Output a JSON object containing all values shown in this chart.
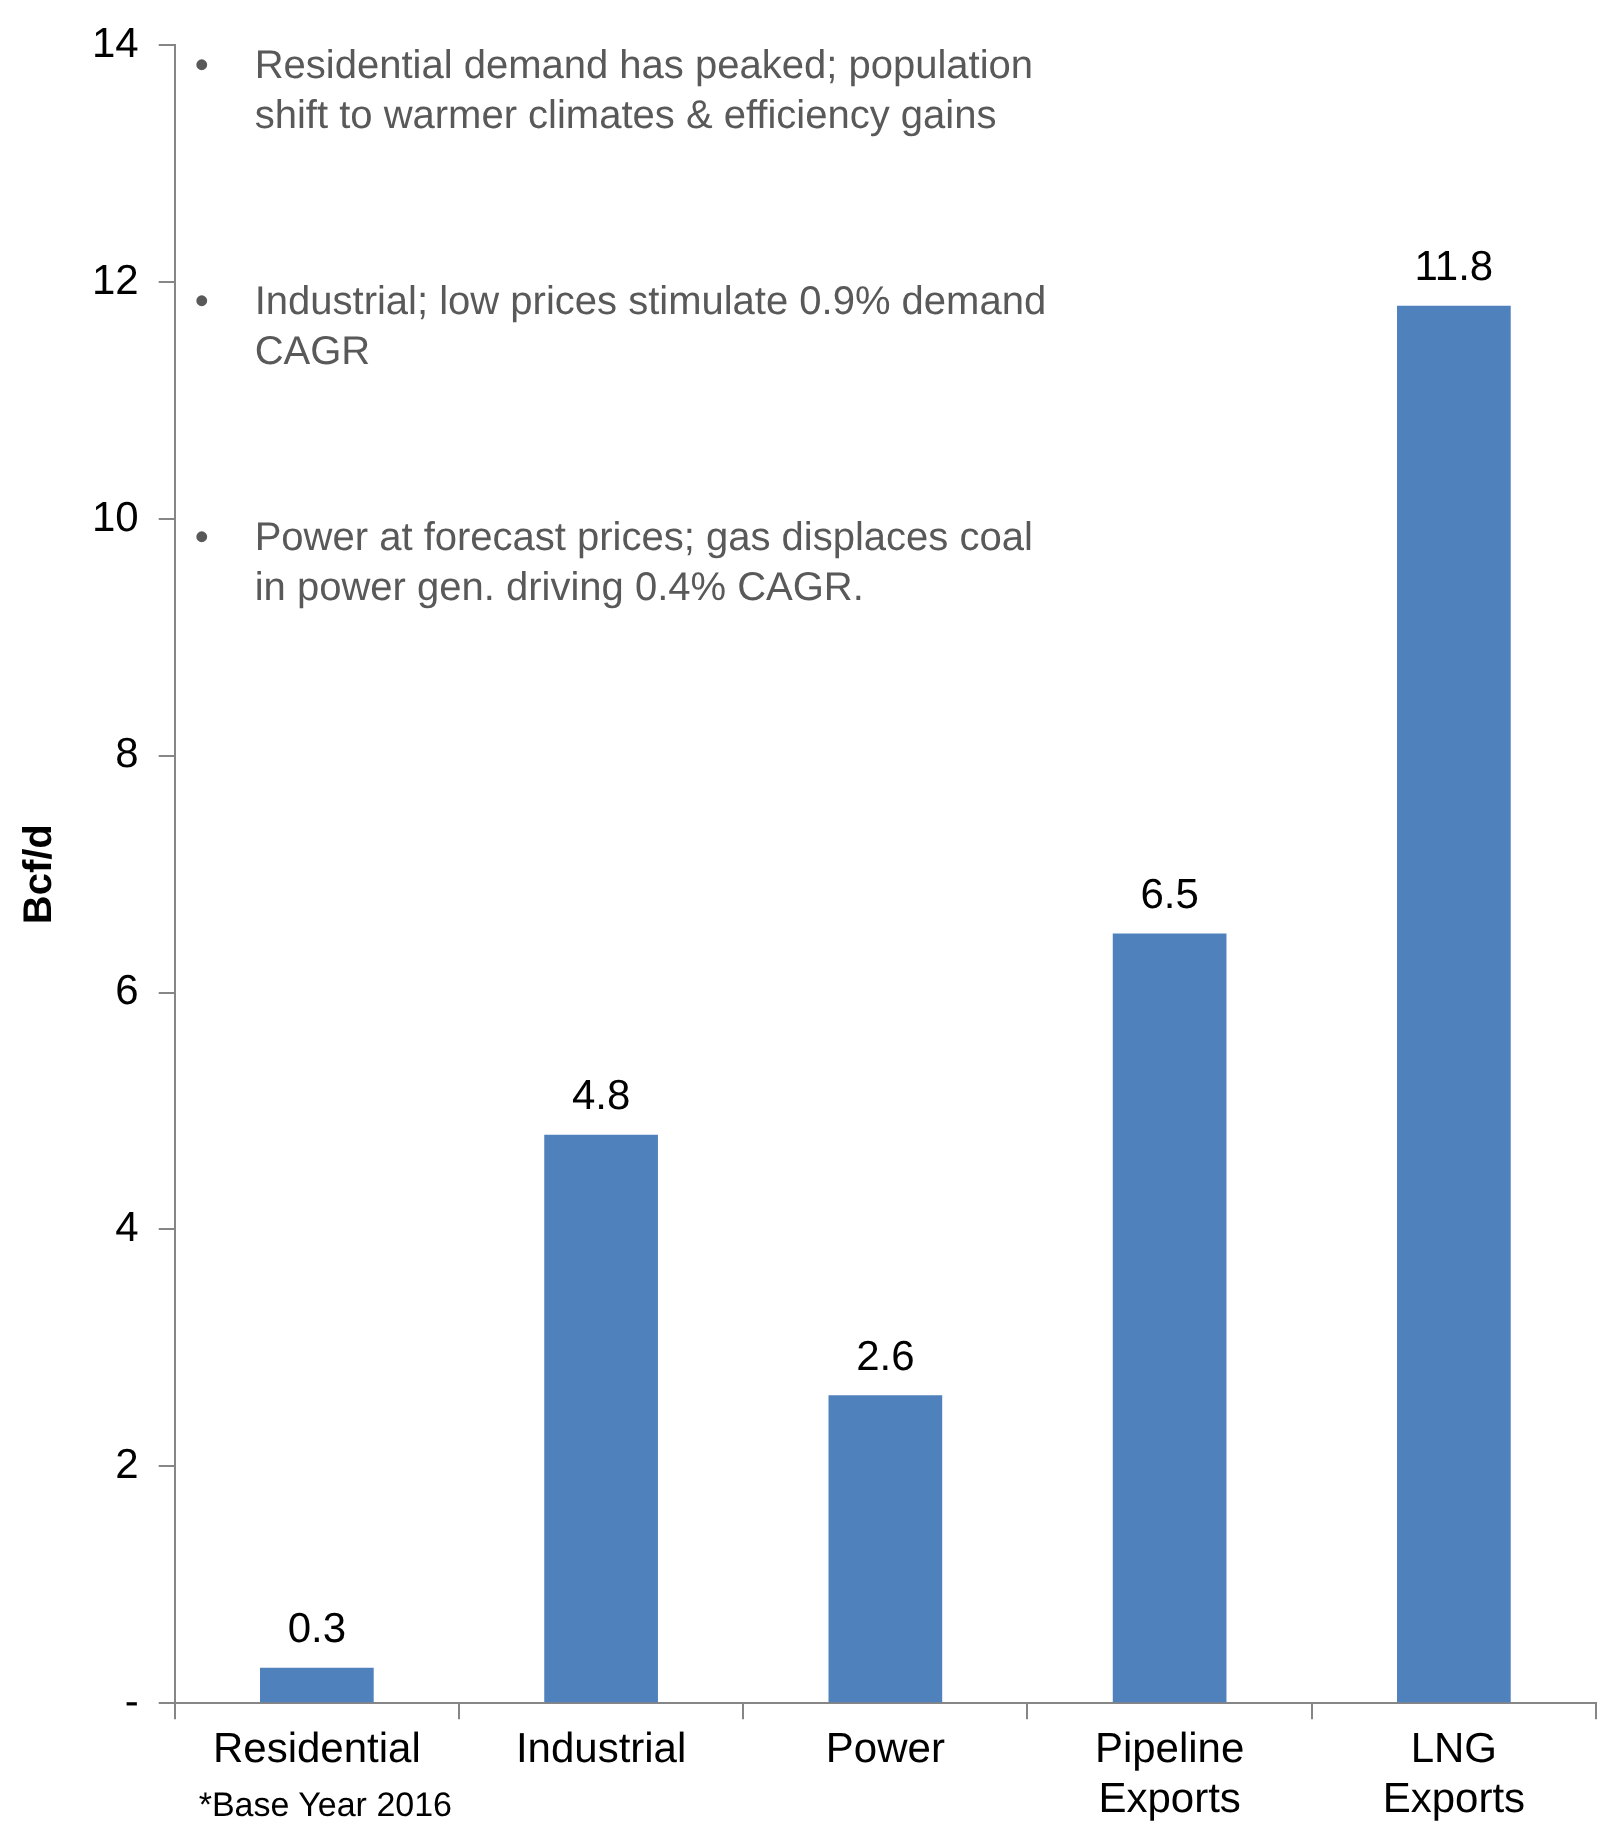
{
  "chart_data": {
    "type": "bar",
    "ylabel": "Bcf/d",
    "categories": [
      "Residential",
      "Industrial",
      "Power",
      "Pipeline Exports",
      "LNG Exports"
    ],
    "values": [
      0.3,
      4.8,
      2.6,
      6.5,
      11.8
    ],
    "color": "#4f81bd",
    "data_labels": true,
    "ylim": [
      0,
      14
    ],
    "yticks": [
      {
        "value": 0,
        "label": "-"
      },
      2,
      4,
      6,
      8,
      10,
      12,
      14
    ],
    "grid": false,
    "annotations": [
      "• Residential demand has peaked; population shift to warmer climates & efficiency gains",
      "• Industrial; low prices stimulate 0.9% demand CAGR",
      "• Power at forecast prices; gas displaces coal in power gen. driving 0.4% CAGR.",
      "*Base Year 2016"
    ]
  }
}
